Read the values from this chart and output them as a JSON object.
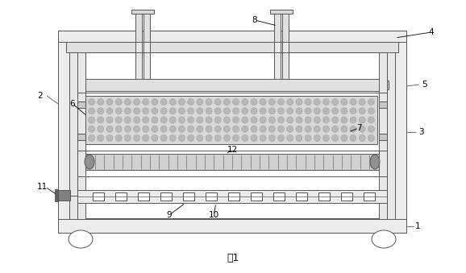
{
  "title": "图1",
  "background_color": "#ffffff",
  "line_color": "#555555",
  "label_color": "#000000",
  "fig_width": 5.78,
  "fig_height": 3.39,
  "dpi": 100
}
